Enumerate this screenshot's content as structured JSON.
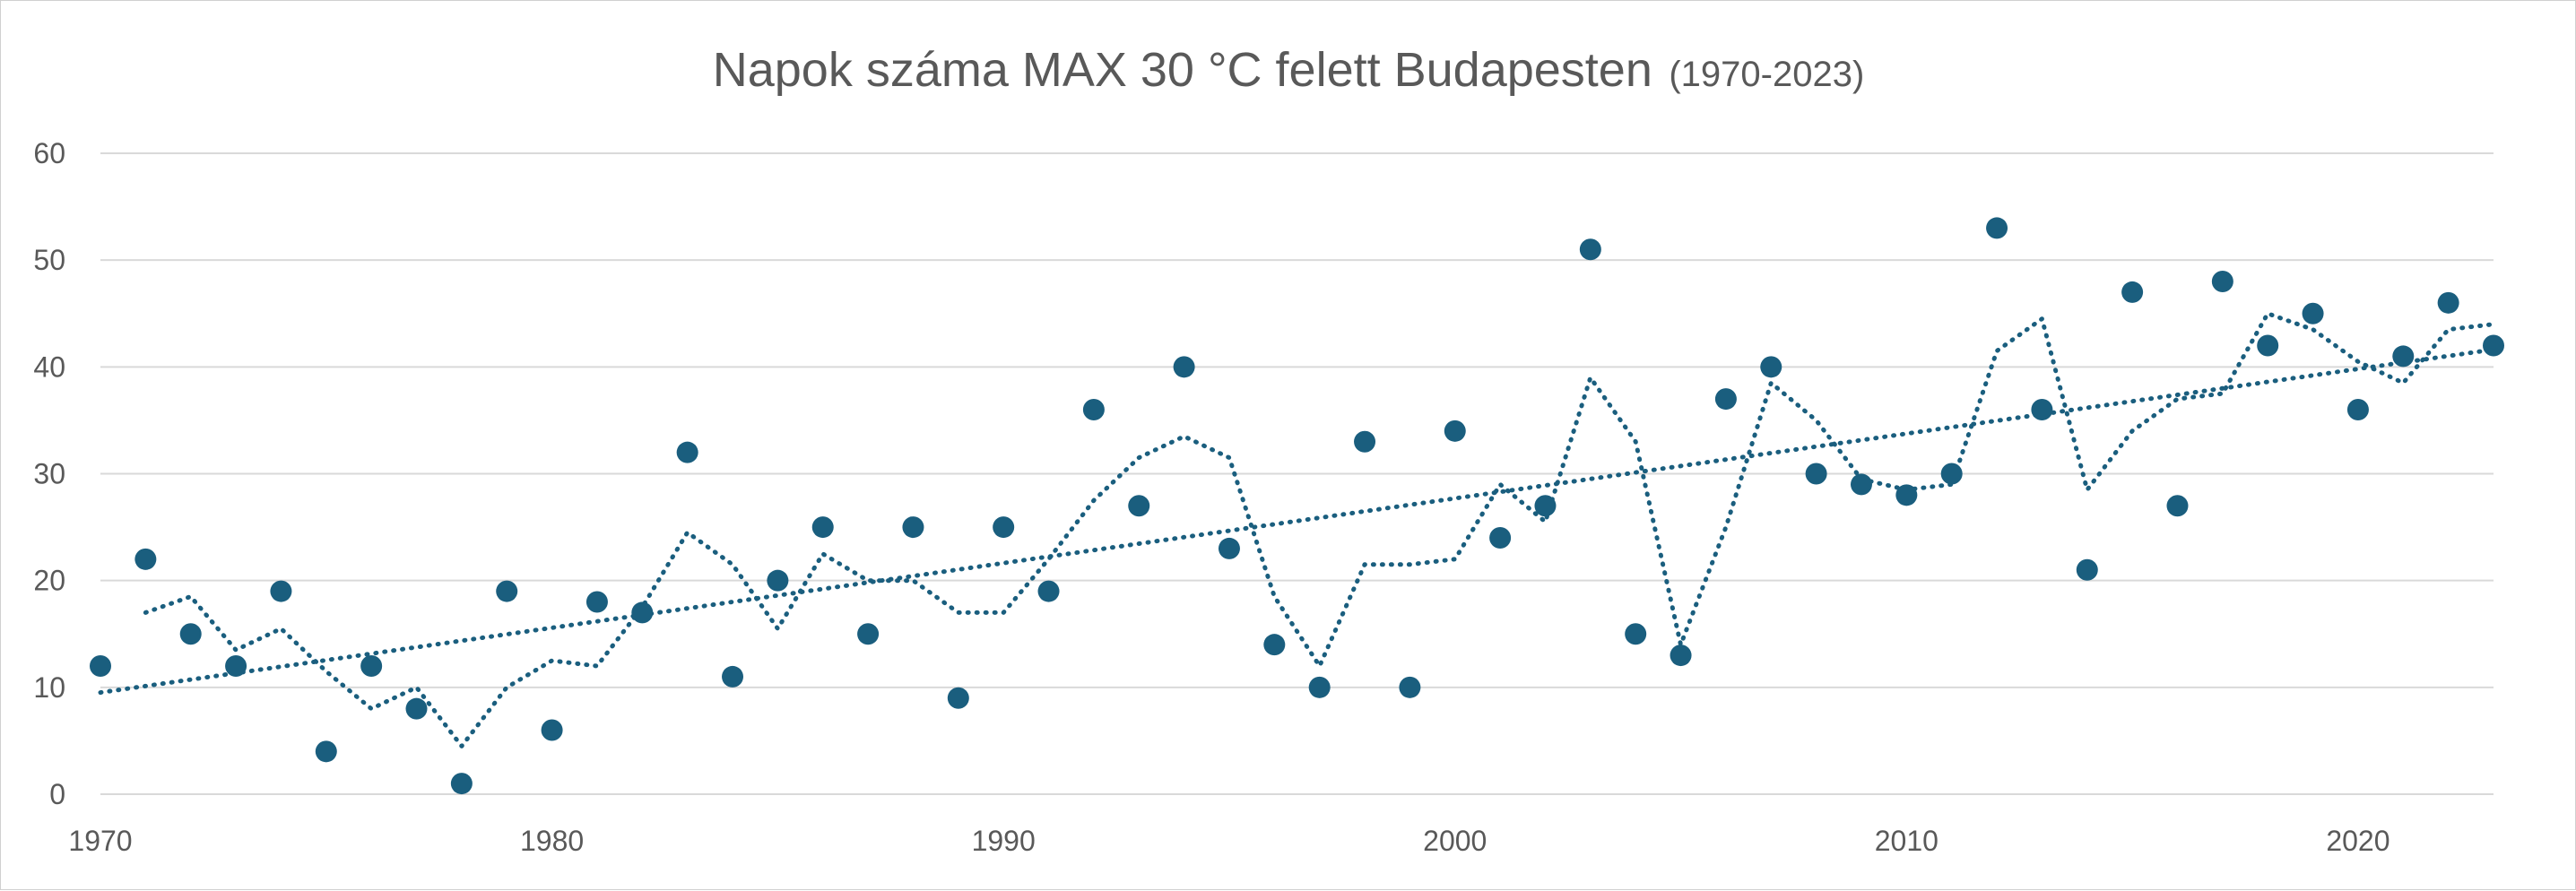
{
  "chart_data": {
    "type": "scatter",
    "title": "Napok száma MAX 30 °C felett Budapesten",
    "subtitle": "(1970-2023)",
    "xlabel": "",
    "ylabel": "",
    "xlim": [
      1970,
      2023
    ],
    "ylim": [
      0,
      60
    ],
    "x_ticks": [
      1970,
      1980,
      1990,
      2000,
      2010,
      2020
    ],
    "y_ticks": [
      0,
      10,
      20,
      30,
      40,
      50,
      60
    ],
    "grid": true,
    "legend": "none",
    "colors": {
      "points": "#1a5e7e",
      "trend": "#1a5e7e",
      "grid": "#d9d9d9",
      "text": "#595959"
    },
    "series": [
      {
        "x": [
          1970,
          1971,
          1972,
          1973,
          1974,
          1975,
          1976,
          1977,
          1978,
          1979,
          1980,
          1981,
          1982,
          1983,
          1984,
          1985,
          1986,
          1987,
          1988,
          1989,
          1990,
          1991,
          1992,
          1993,
          1994,
          1995,
          1996,
          1997,
          1998,
          1999,
          2000,
          2001,
          2002,
          2003,
          2004,
          2005,
          2006,
          2007,
          2008,
          2009,
          2010,
          2011,
          2012,
          2013,
          2014,
          2015,
          2016,
          2017,
          2018,
          2019,
          2020,
          2021,
          2022,
          2023
        ],
        "values": [
          12,
          22,
          15,
          12,
          19,
          4,
          12,
          8,
          1,
          19,
          6,
          18,
          17,
          32,
          11,
          20,
          25,
          15,
          25,
          9,
          25,
          19,
          36,
          27,
          40,
          23,
          14,
          10,
          33,
          10,
          34,
          24,
          27,
          51,
          15,
          13,
          37,
          40,
          30,
          29,
          28,
          30,
          53,
          36,
          21,
          47,
          27,
          48,
          42,
          45,
          36,
          41,
          46,
          42
        ]
      }
    ],
    "trendlines": [
      {
        "kind": "linear",
        "style": "dotted"
      },
      {
        "kind": "moving-average",
        "period": 2,
        "style": "dotted"
      }
    ]
  }
}
